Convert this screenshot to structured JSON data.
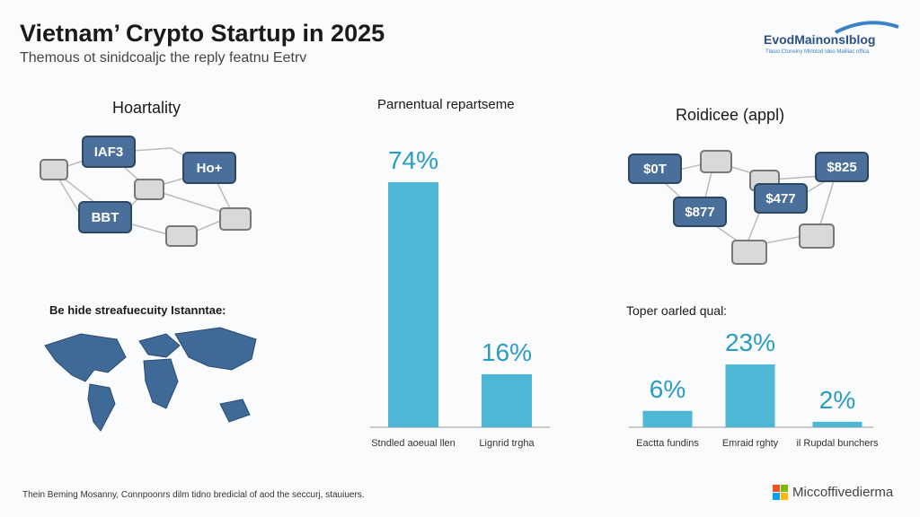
{
  "header": {
    "title": "Vietnam’ Crypto Startup in 2025",
    "subtitle": "Themous ot sinidcoaljc the reply featnu Eetrv"
  },
  "logo": {
    "name": "EvodMainonsIblog",
    "tagline": "Tlasio Ctoneiny Mlrlotod Ideo Maliliac offica"
  },
  "panels": {
    "left_top": {
      "title": "Hoartality",
      "bubbles": [
        "IAF3",
        "Ho+",
        "BBT"
      ]
    },
    "right_top": {
      "title": "Roidicee (appl)",
      "bubbles": [
        "$0T",
        "$825",
        "$877",
        "$477"
      ]
    },
    "left_bottom": {
      "title": "Be hide streafuecuity Istanntae:"
    }
  },
  "chart_data": [
    {
      "type": "bar",
      "title": "Parnentual repartseme",
      "categories": [
        "Stndled aoeual llen",
        "Lignrid trgha"
      ],
      "values": [
        74,
        16
      ],
      "value_labels": [
        "74%",
        "16%"
      ],
      "color": "#4eb7d6"
    },
    {
      "type": "bar",
      "title": "Toper oarled qual:",
      "categories": [
        "Eactta fundins",
        "Emraid rghty",
        "il Rupdal bunchers"
      ],
      "values": [
        6,
        23,
        2
      ],
      "value_labels": [
        "6%",
        "23%",
        "2%"
      ],
      "color": "#4eb7d6"
    }
  ],
  "footer": {
    "note": "Thein Beming Mosanny, Connpoonrs dilm tidno brediclal of aod the seccurj, stauiuers.",
    "brand": "Miccoffivedierma"
  }
}
